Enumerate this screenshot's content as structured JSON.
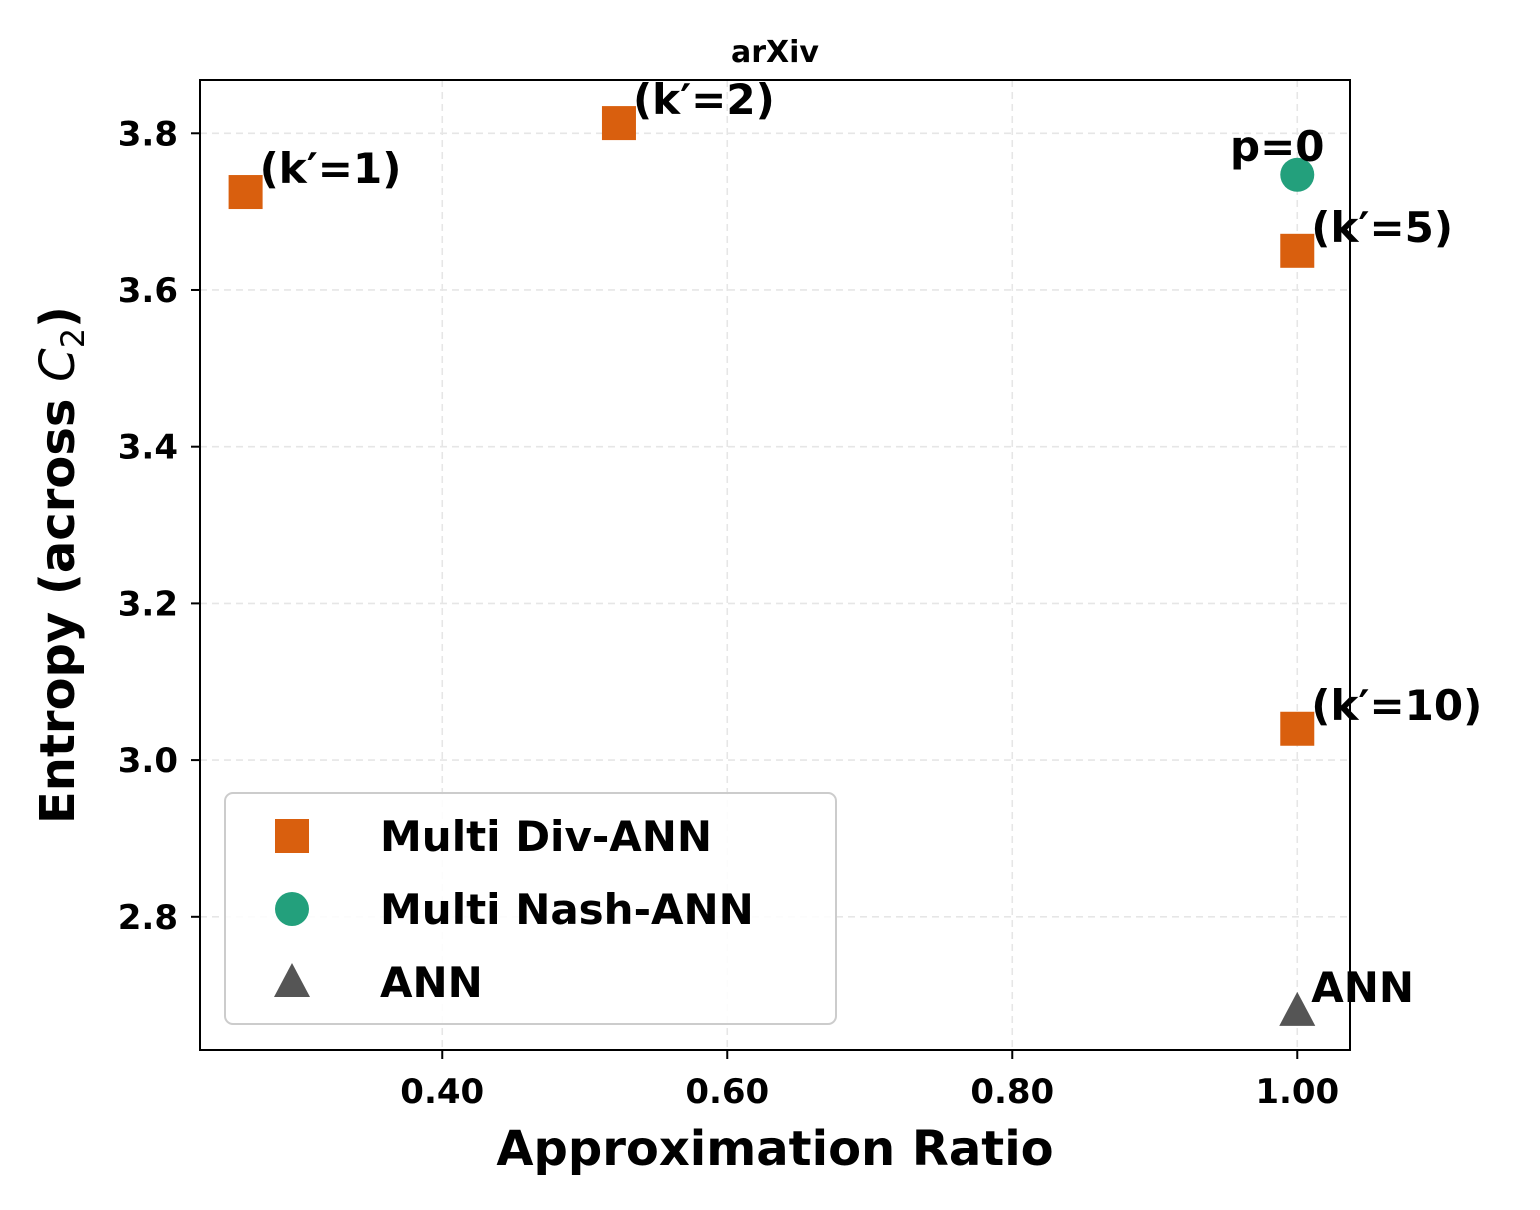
{
  "chart_data": {
    "type": "scatter",
    "title": "arXiv",
    "xlabel": "Approximation Ratio",
    "ylabel_prefix": "Entropy (across ",
    "ylabel_var": "C",
    "ylabel_sub": "2",
    "ylabel_suffix": ")",
    "xlim": [
      0.23,
      1.037
    ],
    "ylim": [
      2.63,
      3.868
    ],
    "xticks": [
      0.4,
      0.6,
      0.8,
      1.0
    ],
    "xtick_labels": [
      "0.40",
      "0.60",
      "0.80",
      "1.00"
    ],
    "yticks": [
      2.8,
      3.0,
      3.2,
      3.4,
      3.6,
      3.8
    ],
    "ytick_labels": [
      "2.8",
      "3.0",
      "3.2",
      "3.4",
      "3.6",
      "3.8"
    ],
    "grid": true,
    "legend_position": "lower-left",
    "series": [
      {
        "name": "Multi Div-ANN",
        "marker": "square",
        "color": "#d95f0e",
        "points": [
          {
            "x": 0.262,
            "y": 3.725,
            "label": "(k′=1)"
          },
          {
            "x": 0.524,
            "y": 3.813,
            "label": "(k′=2)"
          },
          {
            "x": 1.0,
            "y": 3.65,
            "label": "(k′=5)"
          },
          {
            "x": 1.0,
            "y": 3.04,
            "label": "(k′=10)"
          }
        ]
      },
      {
        "name": "Multi Nash-ANN",
        "marker": "circle",
        "color": "#23a07c",
        "points": [
          {
            "x": 1.0,
            "y": 3.747,
            "label": "p=0"
          }
        ]
      },
      {
        "name": "ANN",
        "marker": "triangle",
        "color": "#555555",
        "points": [
          {
            "x": 1.0,
            "y": 2.68,
            "label": "ANN"
          }
        ]
      }
    ]
  }
}
